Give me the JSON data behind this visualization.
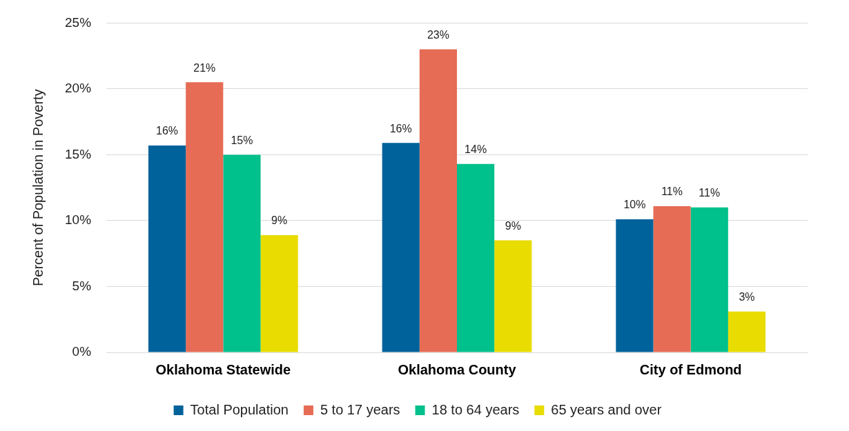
{
  "chart_data": {
    "type": "bar",
    "ylabel": "Percent of Population in Poverty",
    "categories": [
      "Oklahoma Statewide",
      "Oklahoma County",
      "City of Edmond"
    ],
    "series": [
      {
        "name": "Total Population",
        "color": "#00629b",
        "values": [
          15.7,
          15.9,
          10.1
        ],
        "value_labels": [
          "16%",
          "16%",
          "10%"
        ]
      },
      {
        "name": "5 to 17 years",
        "color": "#e66c55",
        "values": [
          20.5,
          23.0,
          11.1
        ],
        "value_labels": [
          "21%",
          "23%",
          "11%"
        ]
      },
      {
        "name": "18 to 64 years",
        "color": "#00c08b",
        "values": [
          15.0,
          14.3,
          11.0
        ],
        "value_labels": [
          "15%",
          "14%",
          "11%"
        ]
      },
      {
        "name": "65 years and over",
        "color": "#e8dc00",
        "values": [
          8.9,
          8.5,
          3.1
        ],
        "value_labels": [
          "9%",
          "9%",
          "3%"
        ]
      }
    ],
    "ylim": [
      0,
      25
    ],
    "yticks": [
      {
        "value": 0,
        "label": "0%"
      },
      {
        "value": 5,
        "label": "5%"
      },
      {
        "value": 10,
        "label": "10%"
      },
      {
        "value": 15,
        "label": "15%"
      },
      {
        "value": 20,
        "label": "20%"
      },
      {
        "value": 25,
        "label": "25%"
      }
    ],
    "grid": "y",
    "legend": "bottom"
  }
}
